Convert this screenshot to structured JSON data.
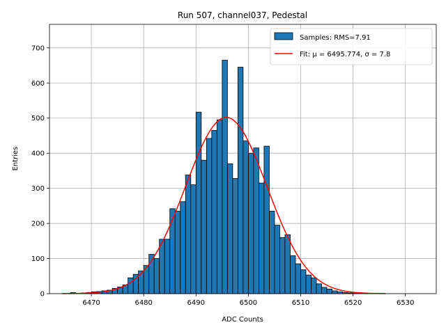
{
  "chart_data": {
    "type": "bar",
    "title": "Run 507, channel037, Pedestal",
    "xlabel": "ADC Counts",
    "ylabel": "Entries",
    "xlim": [
      6462.0,
      6535.9
    ],
    "ylim": [
      0,
      767
    ],
    "xticks": [
      6470,
      6480,
      6490,
      6500,
      6510,
      6520,
      6530
    ],
    "yticks": [
      0,
      100,
      200,
      300,
      400,
      500,
      600,
      700
    ],
    "grid": true,
    "legend_position": "top-right",
    "colors": {
      "bars": "#1f77b4",
      "bar_edge": "#000000",
      "fit": "#ff0000",
      "grid": "#b0b0b0"
    },
    "histogram": {
      "name": "Samples: RMS=7.91",
      "bin_width": 1,
      "bin_starts": [
        6466,
        6467,
        6468,
        6469,
        6470,
        6471,
        6472,
        6473,
        6474,
        6475,
        6476,
        6477,
        6478,
        6479,
        6480,
        6481,
        6482,
        6483,
        6484,
        6485,
        6486,
        6487,
        6488,
        6489,
        6490,
        6491,
        6492,
        6493,
        6494,
        6495,
        6496,
        6497,
        6498,
        6499,
        6500,
        6501,
        6502,
        6503,
        6504,
        6505,
        6506,
        6507,
        6508,
        6509,
        6510,
        6511,
        6512,
        6513,
        6514,
        6515,
        6516,
        6517,
        6518,
        6519,
        6520,
        6521,
        6522
      ],
      "counts": [
        3,
        1,
        2,
        3,
        5,
        6,
        8,
        10,
        15,
        19,
        25,
        45,
        55,
        65,
        80,
        112,
        100,
        155,
        155,
        242,
        235,
        262,
        338,
        310,
        517,
        380,
        442,
        465,
        495,
        665,
        370,
        328,
        645,
        435,
        400,
        415,
        315,
        420,
        235,
        195,
        160,
        168,
        108,
        85,
        68,
        53,
        45,
        28,
        18,
        13,
        8,
        5,
        3,
        2,
        1,
        1,
        1
      ]
    },
    "fit": {
      "name": "Fit: μ = 6495.774, σ = 7.8",
      "mu": 6495.774,
      "sigma": 7.8,
      "amplitude": 502,
      "x_range": [
        6464.4,
        6526.2
      ]
    }
  }
}
